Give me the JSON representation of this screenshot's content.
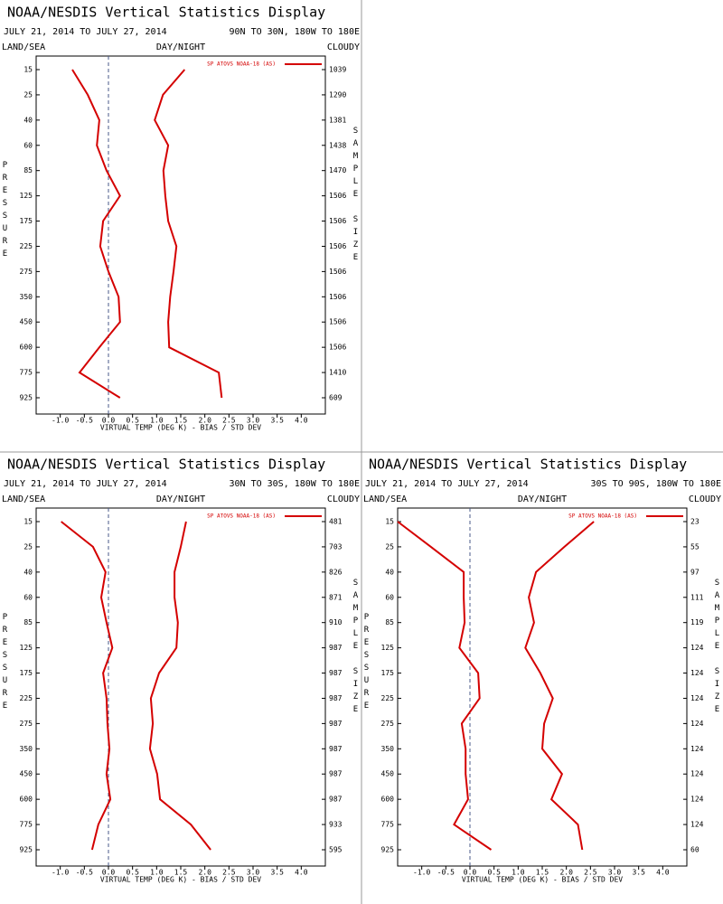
{
  "chart_data": [
    {
      "type": "line",
      "title": "NOAA/NESDIS Vertical Statistics Display",
      "date_range": "JULY 21, 2014 TO JULY 27, 2014",
      "region": "90N TO 30N, 180W TO 180E",
      "left_header": "LAND/SEA",
      "center_header": "DAY/NIGHT",
      "right_header": "CLOUDY",
      "legend_label": "SP ATOVS NOAA-18 (AS)",
      "y_label": "PRESSURE",
      "y2_label": "SAMPLE SIZE",
      "x_label": "VIRTUAL TEMP (DEG K) - BIAS / STD DEV",
      "categories": [
        15,
        25,
        40,
        60,
        85,
        125,
        175,
        225,
        275,
        350,
        450,
        600,
        775,
        925
      ],
      "sample_sizes": [
        1039,
        1290,
        1381,
        1438,
        1470,
        1506,
        1506,
        1506,
        1506,
        1506,
        1506,
        1506,
        1410,
        609
      ],
      "series": [
        {
          "color": "#d40000",
          "values": [
            -0.75,
            -0.43,
            -0.19,
            -0.24,
            -0.04,
            0.24,
            -0.11,
            -0.17,
            0,
            0.21,
            0.24,
            -0.19,
            -0.6,
            0.24
          ]
        },
        {
          "color": "#d40000",
          "values": [
            1.58,
            1.13,
            0.96,
            1.24,
            1.14,
            1.18,
            1.24,
            1.41,
            1.35,
            1.28,
            1.24,
            1.26,
            2.29,
            2.35
          ]
        }
      ],
      "xlim": [
        -1.5,
        4.5
      ],
      "xticks": [
        {
          "value": -1,
          "label": "-1.0"
        },
        -0.5,
        {
          "value": 0,
          "label": "0.0"
        },
        0.5,
        {
          "value": 1,
          "label": "1.0"
        },
        1.5,
        {
          "value": 2,
          "label": "2.0"
        },
        2.5,
        {
          "value": 3,
          "label": "3.0"
        },
        3.5,
        {
          "value": 4,
          "label": "4.0"
        }
      ]
    },
    {
      "type": "line",
      "title": "NOAA/NESDIS Vertical Statistics Display",
      "date_range": "JULY 21, 2014 TO JULY 27, 2014",
      "region": "30N TO 30S, 180W TO 180E",
      "left_header": "LAND/SEA",
      "center_header": "DAY/NIGHT",
      "right_header": "CLOUDY",
      "legend_label": "SP ATOVS NOAA-18 (AS)",
      "y_label": "PRESSURE",
      "y2_label": "SAMPLE SIZE",
      "x_label": "VIRTUAL TEMP (DEG K) - BIAS / STD DEV",
      "categories": [
        15,
        25,
        40,
        60,
        85,
        125,
        175,
        225,
        275,
        350,
        450,
        600,
        775,
        925
      ],
      "sample_sizes": [
        481,
        703,
        826,
        871,
        910,
        987,
        987,
        987,
        987,
        987,
        987,
        987,
        933,
        595
      ],
      "series": [
        {
          "color": "#d40000",
          "values": [
            -0.98,
            -0.32,
            -0.06,
            -0.15,
            -0.04,
            0.08,
            -0.11,
            -0.04,
            -0.02,
            0.02,
            -0.04,
            0.04,
            -0.21,
            -0.34
          ]
        },
        {
          "color": "#d40000",
          "values": [
            1.61,
            1.5,
            1.37,
            1.37,
            1.44,
            1.41,
            1.05,
            0.88,
            0.92,
            0.86,
            1.01,
            1.07,
            1.71,
            2.12
          ]
        }
      ],
      "xlim": [
        -1.5,
        4.5
      ],
      "xticks": [
        {
          "value": -1,
          "label": "-1.0"
        },
        -0.5,
        {
          "value": 0,
          "label": "0.0"
        },
        0.5,
        {
          "value": 1,
          "label": "1.0"
        },
        1.5,
        {
          "value": 2,
          "label": "2.0"
        },
        2.5,
        {
          "value": 3,
          "label": "3.0"
        },
        3.5,
        {
          "value": 4,
          "label": "4.0"
        }
      ]
    },
    {
      "type": "line",
      "title": "NOAA/NESDIS Vertical Statistics Display",
      "date_range": "JULY 21, 2014 TO JULY 27, 2014",
      "region": "30S TO 90S, 180W TO 180E",
      "left_header": "LAND/SEA",
      "center_header": "DAY/NIGHT",
      "right_header": "CLOUDY",
      "legend_label": "SP ATOVS NOAA-18 (AS)",
      "y_label": "PRESSURE",
      "y2_label": "SAMPLE SIZE",
      "x_label": "VIRTUAL TEMP (DEG K) - BIAS / STD DEV",
      "categories": [
        15,
        25,
        40,
        60,
        85,
        125,
        175,
        225,
        275,
        350,
        450,
        600,
        775,
        925
      ],
      "sample_sizes": [
        23,
        55,
        97,
        111,
        119,
        124,
        124,
        124,
        124,
        124,
        124,
        124,
        124,
        60
      ],
      "series": [
        {
          "color": "#d40000",
          "values": [
            -1.5,
            -0.81,
            -0.13,
            -0.13,
            -0.11,
            -0.22,
            0.17,
            0.2,
            -0.17,
            -0.09,
            -0.09,
            -0.04,
            -0.33,
            0.44
          ]
        },
        {
          "color": "#d40000",
          "values": [
            2.57,
            1.96,
            1.37,
            1.22,
            1.33,
            1.15,
            1.46,
            1.72,
            1.54,
            1.5,
            1.91,
            1.69,
            2.24,
            2.33
          ]
        }
      ],
      "xlim": [
        -1.5,
        4.5
      ],
      "xticks": [
        {
          "value": -1,
          "label": "-1.0"
        },
        -0.5,
        {
          "value": 0,
          "label": "0.0"
        },
        0.5,
        {
          "value": 1,
          "label": "1.0"
        },
        1.5,
        {
          "value": 2,
          "label": "2.0"
        },
        2.5,
        {
          "value": 3,
          "label": "3.0"
        },
        3.5,
        {
          "value": 4,
          "label": "4.0"
        }
      ]
    }
  ]
}
